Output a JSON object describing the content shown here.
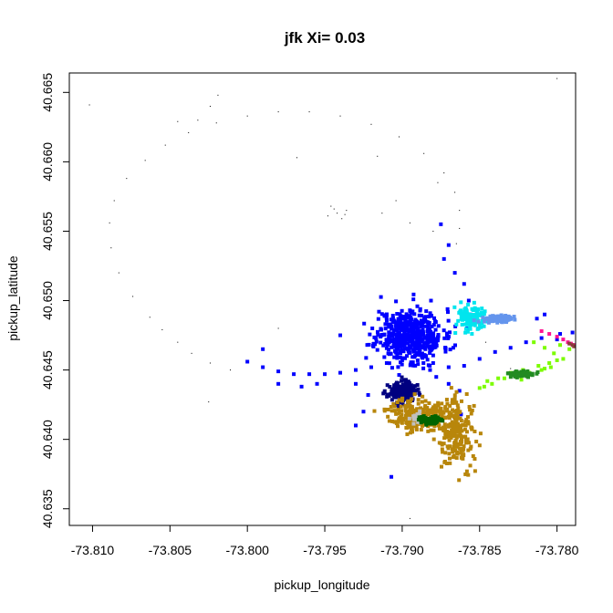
{
  "chart_data": {
    "type": "scatter",
    "title": "jfk Xi= 0.03",
    "xlabel": "pickup_longitude",
    "ylabel": "pickup_latitude",
    "xlim": [
      -73.8115,
      -73.7788
    ],
    "ylim": [
      40.6338,
      40.6664
    ],
    "xticks": [
      -73.81,
      -73.805,
      -73.8,
      -73.795,
      -73.79,
      -73.785,
      -73.78
    ],
    "xtick_labels": [
      "-73.810",
      "-73.805",
      "-73.800",
      "-73.795",
      "-73.790",
      "-73.785",
      "-73.780"
    ],
    "yticks": [
      40.635,
      40.64,
      40.645,
      40.65,
      40.655,
      40.66,
      40.665
    ],
    "ytick_labels": [
      "40.635",
      "40.640",
      "40.645",
      "40.650",
      "40.655",
      "40.660",
      "40.665"
    ],
    "grid": false,
    "legend": "none",
    "series": [
      {
        "color": "#000000",
        "size": 1,
        "points": [
          [
            -73.8063,
            40.6488
          ],
          [
            -73.8055,
            40.6479
          ],
          [
            -73.8045,
            40.647
          ],
          [
            -73.8036,
            40.6462
          ],
          [
            -73.8024,
            40.6455
          ],
          [
            -73.8011,
            40.645
          ],
          [
            -73.8074,
            40.6503
          ],
          [
            -73.8083,
            40.652
          ],
          [
            -73.8088,
            40.6538
          ],
          [
            -73.8089,
            40.6556
          ],
          [
            -73.8086,
            40.6572
          ],
          [
            -73.8078,
            40.6588
          ],
          [
            -73.8066,
            40.6601
          ],
          [
            -73.8053,
            40.6612
          ],
          [
            -73.8038,
            40.6621
          ],
          [
            -73.802,
            40.6628
          ],
          [
            -73.8,
            40.6633
          ],
          [
            -73.798,
            40.6636
          ],
          [
            -73.796,
            40.6636
          ],
          [
            -73.794,
            40.6633
          ],
          [
            -73.792,
            40.6627
          ],
          [
            -73.7902,
            40.6618
          ],
          [
            -73.7886,
            40.6606
          ],
          [
            -73.7873,
            40.6592
          ],
          [
            -73.7866,
            40.6578
          ],
          [
            -73.7863,
            40.6565
          ],
          [
            -73.7863,
            40.6552
          ],
          [
            -73.7865,
            40.6541
          ],
          [
            -73.7904,
            40.6572
          ],
          [
            -73.7913,
            40.6563
          ],
          [
            -73.7895,
            40.6556
          ],
          [
            -73.788,
            40.655
          ],
          [
            -73.7946,
            40.6568
          ],
          [
            -73.7942,
            40.6563
          ],
          [
            -73.7936,
            40.6565
          ],
          [
            -73.7948,
            40.6561
          ],
          [
            -73.7939,
            40.6559
          ],
          [
            -73.7944,
            40.6566
          ],
          [
            -73.7937,
            40.6562
          ],
          [
            -73.8019,
            40.6648
          ],
          [
            -73.8024,
            40.664
          ],
          [
            -73.8032,
            40.663
          ],
          [
            -73.8045,
            40.6629
          ],
          [
            -73.8102,
            40.6641
          ],
          [
            -73.7968,
            40.6603
          ],
          [
            -73.7916,
            40.6604
          ],
          [
            -73.7877,
            40.6585
          ],
          [
            -73.8025,
            40.6427
          ],
          [
            -73.7895,
            40.6343
          ],
          [
            -73.78,
            40.666
          ],
          [
            -73.7846,
            40.647
          ],
          [
            -73.783,
            40.6451
          ],
          [
            -73.798,
            40.648
          ]
        ]
      },
      {
        "color": "#0000ff",
        "size": 4,
        "points": [
          [
            -73.8,
            40.6456
          ],
          [
            -73.799,
            40.6452
          ],
          [
            -73.798,
            40.6449
          ],
          [
            -73.797,
            40.6447
          ],
          [
            -73.796,
            40.6447
          ],
          [
            -73.795,
            40.6447
          ],
          [
            -73.794,
            40.6448
          ],
          [
            -73.793,
            40.645
          ],
          [
            -73.792,
            40.6452
          ],
          [
            -73.791,
            40.6455
          ],
          [
            -73.79,
            40.6457
          ],
          [
            -73.789,
            40.6457
          ],
          [
            -73.788,
            40.6455
          ],
          [
            -73.787,
            40.6452
          ],
          [
            -73.786,
            40.6453
          ],
          [
            -73.785,
            40.6458
          ],
          [
            -73.784,
            40.6463
          ],
          [
            -73.783,
            40.6466
          ],
          [
            -73.782,
            40.647
          ],
          [
            -73.781,
            40.6473
          ],
          [
            -73.78,
            40.6472
          ],
          [
            -73.799,
            40.6465
          ],
          [
            -73.798,
            40.644
          ],
          [
            -73.7955,
            40.644
          ],
          [
            -73.793,
            40.644
          ],
          [
            -73.794,
            40.6475
          ],
          [
            -73.7965,
            40.6438
          ],
          [
            -73.7873,
            40.653
          ],
          [
            -73.7866,
            40.652
          ],
          [
            -73.786,
            40.6512
          ],
          [
            -73.7857,
            40.65
          ],
          [
            -73.7856,
            40.649
          ],
          [
            -73.7858,
            40.648
          ],
          [
            -73.7875,
            40.6555
          ],
          [
            -73.787,
            40.654
          ],
          [
            -73.7878,
            40.6445
          ],
          [
            -73.787,
            40.644
          ],
          [
            -73.7863,
            40.6435
          ],
          [
            -73.7882,
            40.645
          ],
          [
            -73.7915,
            40.6492
          ],
          [
            -73.791,
            40.649
          ],
          [
            -73.7885,
            40.6465
          ],
          [
            -73.7922,
            40.6432
          ],
          [
            -73.7925,
            40.642
          ],
          [
            -73.793,
            40.641
          ],
          [
            -73.7878,
            40.647
          ],
          [
            -73.7895,
            40.6493
          ],
          [
            -73.79,
            40.6482
          ],
          [
            -73.7867,
            40.6466
          ],
          [
            -73.7862,
            40.6418
          ],
          [
            -73.7907,
            40.6373
          ],
          [
            -73.7808,
            40.649
          ],
          [
            -73.7813,
            40.6487
          ],
          [
            -73.7798,
            40.6476
          ],
          [
            -73.779,
            40.6477
          ],
          [
            -73.7785,
            40.6475
          ]
        ]
      },
      {
        "color": "#0000ff",
        "size": 4,
        "cluster": true,
        "count": 520,
        "center": [
          -73.7895,
          40.6475
        ],
        "spread": [
          0.00105,
          0.00095
        ],
        "seed": 11
      },
      {
        "color": "#000080",
        "size": 4,
        "cluster": true,
        "count": 220,
        "center": [
          -73.79,
          40.6434
        ],
        "spread": [
          0.00045,
          0.00035
        ],
        "seed": 23
      },
      {
        "color": "#b8860b",
        "size": 4,
        "cluster": true,
        "count": 240,
        "center": [
          -73.789,
          40.6418
        ],
        "spread": [
          0.0009,
          0.0006
        ],
        "seed": 37
      },
      {
        "color": "#b8860b",
        "size": 4,
        "cluster": true,
        "count": 220,
        "center": [
          -73.7865,
          40.6405
        ],
        "spread": [
          0.0006,
          0.0012
        ],
        "seed": 41
      },
      {
        "color": "#c0c0c0",
        "size": 4,
        "cluster": true,
        "count": 40,
        "center": [
          -73.789,
          40.6416
        ],
        "spread": [
          0.0002,
          0.0002
        ],
        "seed": 53
      },
      {
        "color": "#006400",
        "size": 4,
        "cluster": true,
        "count": 110,
        "center": [
          -73.7882,
          40.6414
        ],
        "spread": [
          0.0004,
          0.00015
        ],
        "seed": 61
      },
      {
        "color": "#00e5ee",
        "size": 4,
        "cluster": true,
        "count": 130,
        "center": [
          -73.7855,
          40.6487
        ],
        "spread": [
          0.0005,
          0.0005
        ],
        "seed": 71
      },
      {
        "color": "#6495ed",
        "size": 4,
        "cluster": true,
        "count": 90,
        "center": [
          -73.7838,
          40.6487
        ],
        "spread": [
          0.0005,
          0.00012
        ],
        "seed": 79
      },
      {
        "color": "#7cfc00",
        "size": 4,
        "points": [
          [
            -73.7815,
            40.647
          ],
          [
            -73.7808,
            40.6466
          ],
          [
            -73.7802,
            40.6462
          ],
          [
            -73.78,
            40.6457
          ],
          [
            -73.7804,
            40.6452
          ],
          [
            -73.781,
            40.645
          ],
          [
            -73.7818,
            40.6448
          ],
          [
            -73.7826,
            40.6446
          ],
          [
            -73.7834,
            40.6444
          ],
          [
            -73.7842,
            40.644
          ],
          [
            -73.7847,
            40.6438
          ],
          [
            -73.7838,
            40.6444
          ],
          [
            -73.7805,
            40.6455
          ],
          [
            -73.7796,
            40.6458
          ],
          [
            -73.7812,
            40.6453
          ],
          [
            -73.7822,
            40.645
          ],
          [
            -73.783,
            40.6448
          ],
          [
            -73.7845,
            40.6442
          ],
          [
            -73.785,
            40.6437
          ],
          [
            -73.7792,
            40.6465
          ],
          [
            -73.7798,
            40.6468
          ],
          [
            -73.7823,
            40.6443
          ],
          [
            -73.7816,
            40.6447
          ],
          [
            -73.7808,
            40.6451
          ]
        ]
      },
      {
        "color": "#228b22",
        "size": 4,
        "cluster": true,
        "count": 70,
        "center": [
          -73.7822,
          40.6447
        ],
        "spread": [
          0.00045,
          0.00012
        ],
        "seed": 89
      },
      {
        "color": "#ff1493",
        "size": 4,
        "points": [
          [
            -73.781,
            40.6478
          ],
          [
            -73.7805,
            40.6476
          ],
          [
            -73.78,
            40.6474
          ],
          [
            -73.7796,
            40.6472
          ],
          [
            -73.7793,
            40.647
          ],
          [
            -73.7791,
            40.6469
          ],
          [
            -73.7789,
            40.6468
          ]
        ]
      },
      {
        "color": "#8b3a3a",
        "size": 4,
        "points": [
          [
            -73.7792,
            40.6469
          ],
          [
            -73.779,
            40.6468
          ],
          [
            -73.7789,
            40.6467
          ]
        ]
      }
    ]
  }
}
